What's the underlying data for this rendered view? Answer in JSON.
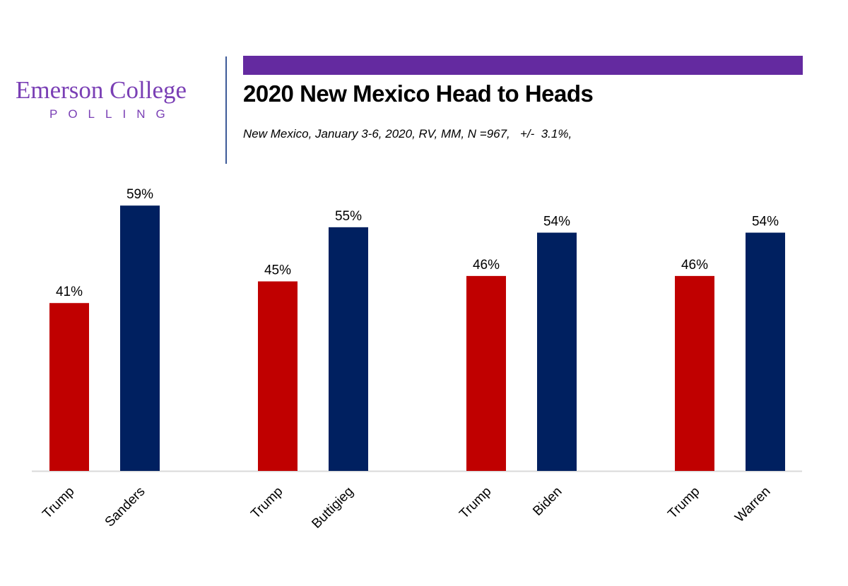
{
  "logo": {
    "line1": "Emerson College",
    "line2": "POLLING"
  },
  "colors": {
    "trump": "#c00000",
    "democrat": "#002060",
    "accent": "#642aa0"
  },
  "chart_data": {
    "type": "bar",
    "title": "2020 New Mexico Head to Heads",
    "subtitle": "New Mexico, January 3-6, 2020, RV, MM, N =967,   +/-  3.1%,",
    "xlabel": "",
    "ylabel": "",
    "ylim": [
      10,
      65
    ],
    "grid": false,
    "groups": [
      {
        "bars": [
          {
            "label": "Trump",
            "value": 41,
            "value_label": "41%",
            "party": "trump"
          },
          {
            "label": "Sanders",
            "value": 59,
            "value_label": "59%",
            "party": "democrat"
          }
        ]
      },
      {
        "bars": [
          {
            "label": "Trump",
            "value": 45,
            "value_label": "45%",
            "party": "trump"
          },
          {
            "label": "Buttigieg",
            "value": 55,
            "value_label": "55%",
            "party": "democrat"
          }
        ]
      },
      {
        "bars": [
          {
            "label": "Trump",
            "value": 46,
            "value_label": "46%",
            "party": "trump"
          },
          {
            "label": "Biden",
            "value": 54,
            "value_label": "54%",
            "party": "democrat"
          }
        ]
      },
      {
        "bars": [
          {
            "label": "Trump",
            "value": 46,
            "value_label": "46%",
            "party": "trump"
          },
          {
            "label": "Warren",
            "value": 54,
            "value_label": "54%",
            "party": "democrat"
          }
        ]
      }
    ]
  }
}
